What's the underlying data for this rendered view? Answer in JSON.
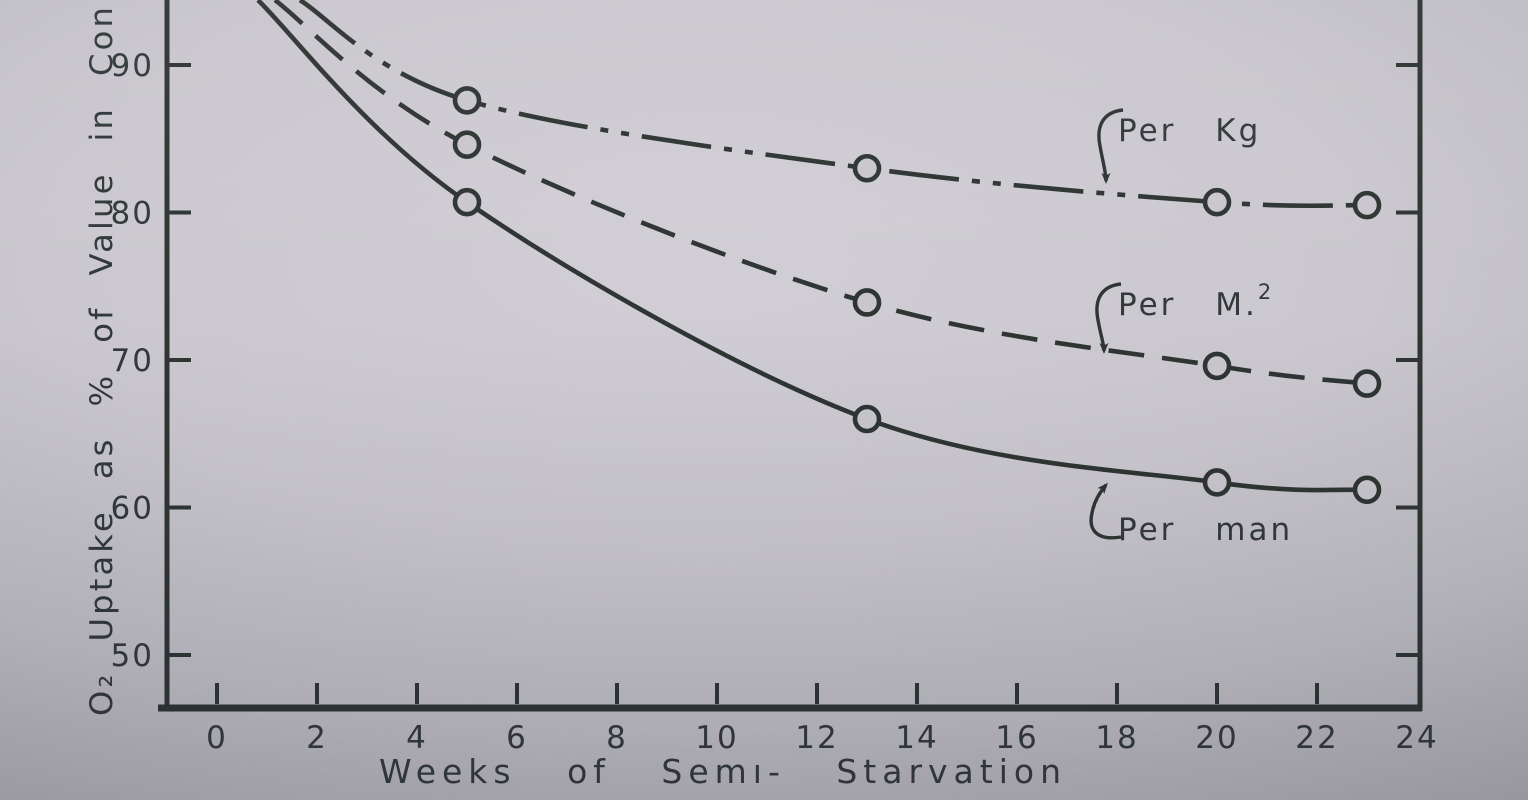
{
  "figure": {
    "description": "Photographed scientific line chart, top edge of plot cropped",
    "title": ""
  },
  "chart_data": {
    "type": "line",
    "title": "",
    "xlabel": "Weeks   of   Semı- Starvation",
    "ylabel": "O₂  Uptake  as  %  of  Value  in  Con",
    "x_axis": {
      "min": 0,
      "max": 24,
      "ticks": [
        0,
        2,
        4,
        6,
        8,
        10,
        12,
        14,
        16,
        18,
        20,
        22,
        24
      ]
    },
    "y_axis": {
      "ticks": [
        90,
        80,
        70,
        60,
        50
      ],
      "visible_min": 46,
      "visible_max": 94.4,
      "unit": "% of control value"
    },
    "legend_position": "annotations with arrows beside each curve",
    "grid": false,
    "series": [
      {
        "name": "Per Kg",
        "line_style": "dash-dot-dot",
        "marker": "open-circle",
        "x": [
          5,
          13,
          20,
          23
        ],
        "y": [
          87.6,
          83.0,
          80.7,
          80.5
        ],
        "enters_frame_at": {
          "x": 1.66,
          "y": 94.4
        },
        "annotation": {
          "text": "Per Kg",
          "sup": "",
          "arrow": "down"
        }
      },
      {
        "name": "Per M.²",
        "line_style": "dashed",
        "marker": "open-circle",
        "x": [
          5,
          13,
          20,
          23
        ],
        "y": [
          84.6,
          73.9,
          69.6,
          68.4
        ],
        "enters_frame_at": {
          "x": 1.16,
          "y": 94.4
        },
        "annotation": {
          "text": "Per M.",
          "sup": "2",
          "arrow": "down"
        }
      },
      {
        "name": "Per man",
        "line_style": "solid",
        "marker": "open-circle",
        "x": [
          5,
          13,
          20,
          23
        ],
        "y": [
          80.7,
          66.0,
          61.7,
          61.2
        ],
        "enters_frame_at": {
          "x": 0.82,
          "y": 94.4
        },
        "annotation": {
          "text": "Per man",
          "sup": "",
          "arrow": "up"
        }
      }
    ],
    "colors": {
      "ink": "#2e3533",
      "paper_center": "#cecdd3",
      "paper_edge": "#98969d"
    }
  }
}
